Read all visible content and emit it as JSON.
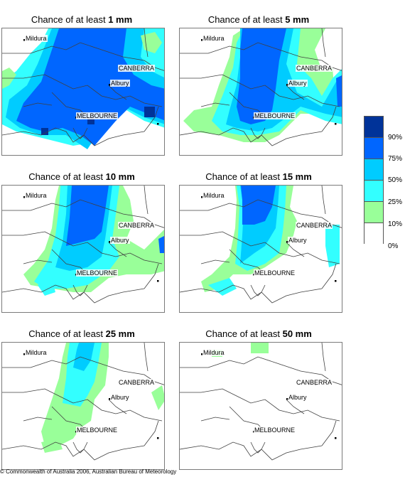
{
  "colors": {
    "c10": "#99ff99",
    "c25": "#33ffff",
    "c50": "#00ccff",
    "c75": "#0066ff",
    "c90": "#003399",
    "border": "#404040"
  },
  "panels": [
    {
      "title_prefix": "Chance of at least ",
      "amount": "1 mm",
      "places": {
        "mildura": "Mildura",
        "canberra": "CANBERRA",
        "albury": "Albury",
        "melbourne": "MELBOURNE"
      }
    },
    {
      "title_prefix": "Chance of at least ",
      "amount": "5 mm",
      "places": {
        "mildura": "Mildura",
        "canberra": "CANBERRA",
        "albury": "Albury",
        "melbourne": "MELBOURNE"
      }
    },
    {
      "title_prefix": "Chance of at least ",
      "amount": "10 mm",
      "places": {
        "mildura": "Mildura",
        "canberra": "CANBERRA",
        "albury": "Albury",
        "melbourne": "MELBOURNE"
      }
    },
    {
      "title_prefix": "Chance of at least ",
      "amount": "15 mm",
      "places": {
        "mildura": "Mildura",
        "canberra": "CANBERRA",
        "albury": "Albury",
        "melbourne": "MELBOURNE"
      }
    },
    {
      "title_prefix": "Chance of at least ",
      "amount": "25 mm",
      "places": {
        "mildura": "Mildura",
        "canberra": "CANBERRA",
        "albury": "Albury",
        "melbourne": "MELBOURNE"
      }
    },
    {
      "title_prefix": "Chance of at least ",
      "amount": "50 mm",
      "places": {
        "mildura": "Mildura",
        "canberra": "CANBERRA",
        "albury": "Albury",
        "melbourne": "MELBOURNE"
      }
    }
  ],
  "legend": {
    "labels": [
      "90%",
      "75%",
      "50%",
      "25%",
      "10%",
      "0%"
    ],
    "swatches": [
      "#003399",
      "#0066ff",
      "#00ccff",
      "#33ffff",
      "#99ff99",
      "#ffffff"
    ]
  },
  "credit": "© Commonwealth of Australia 2006, Australian Bureau of Meteorology"
}
